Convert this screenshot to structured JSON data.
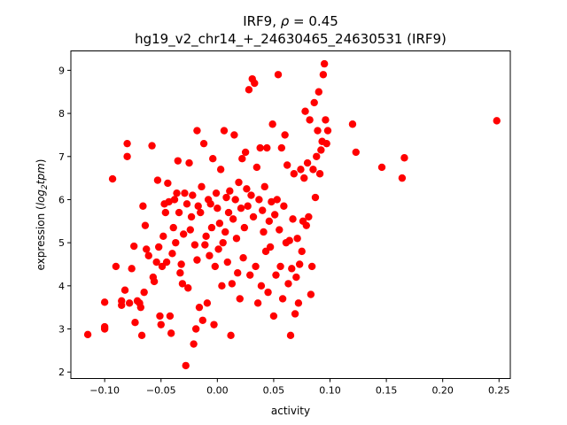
{
  "chart_data": {
    "type": "scatter",
    "title": {
      "line1_prefix": "IRF9, ",
      "line1_rho_symbol": "ρ",
      "line1_rho_value": " = 0.45",
      "line2": "hg19_v2_chr14_+_24630465_24630531 (IRF9)"
    },
    "xlabel": "activity",
    "ylabel": {
      "prefix": "expression (",
      "log_base": "log",
      "subscript": "2",
      "suffix_italic": "tpm",
      "close": ")"
    },
    "xlim": [
      -0.13,
      0.26
    ],
    "ylim": [
      1.85,
      9.45
    ],
    "xticks": [
      -0.1,
      -0.05,
      0.0,
      0.05,
      0.1,
      0.15,
      0.2,
      0.25
    ],
    "xtick_labels": [
      "−0.10",
      "−0.05",
      "0.00",
      "0.05",
      "0.10",
      "0.15",
      "0.20",
      "0.25"
    ],
    "yticks": [
      2,
      3,
      4,
      5,
      6,
      7,
      8,
      9
    ],
    "ytick_labels": [
      "2",
      "3",
      "4",
      "5",
      "6",
      "7",
      "8",
      "9"
    ],
    "marker_color": "#ff0000",
    "grid": false,
    "points": [
      [
        -0.115,
        2.87
      ],
      [
        -0.1,
        3.0
      ],
      [
        -0.1,
        3.05
      ],
      [
        -0.1,
        3.62
      ],
      [
        -0.093,
        6.48
      ],
      [
        -0.09,
        4.45
      ],
      [
        -0.085,
        3.55
      ],
      [
        -0.085,
        3.65
      ],
      [
        -0.082,
        3.9
      ],
      [
        -0.08,
        7.3
      ],
      [
        -0.08,
        7.0
      ],
      [
        -0.078,
        3.6
      ],
      [
        -0.076,
        4.4
      ],
      [
        -0.074,
        4.92
      ],
      [
        -0.073,
        3.15
      ],
      [
        -0.071,
        3.65
      ],
      [
        -0.069,
        3.6
      ],
      [
        -0.068,
        3.5
      ],
      [
        -0.067,
        2.85
      ],
      [
        -0.066,
        5.85
      ],
      [
        -0.065,
        3.85
      ],
      [
        -0.064,
        5.4
      ],
      [
        -0.063,
        4.85
      ],
      [
        -0.061,
        4.7
      ],
      [
        -0.058,
        7.25
      ],
      [
        -0.057,
        4.2
      ],
      [
        -0.056,
        4.1
      ],
      [
        -0.054,
        4.55
      ],
      [
        -0.053,
        6.45
      ],
      [
        -0.052,
        4.9
      ],
      [
        -0.051,
        3.3
      ],
      [
        -0.05,
        3.1
      ],
      [
        -0.049,
        4.45
      ],
      [
        -0.048,
        5.15
      ],
      [
        -0.047,
        5.9
      ],
      [
        -0.046,
        5.7
      ],
      [
        -0.045,
        4.55
      ],
      [
        -0.044,
        6.38
      ],
      [
        -0.043,
        5.95
      ],
      [
        -0.042,
        3.3
      ],
      [
        -0.041,
        2.9
      ],
      [
        -0.04,
        4.75
      ],
      [
        -0.039,
        5.35
      ],
      [
        -0.038,
        6.0
      ],
      [
        -0.037,
        5.0
      ],
      [
        -0.036,
        6.15
      ],
      [
        -0.035,
        6.9
      ],
      [
        -0.034,
        5.7
      ],
      [
        -0.033,
        4.3
      ],
      [
        -0.032,
        4.5
      ],
      [
        -0.031,
        4.05
      ],
      [
        -0.03,
        5.2
      ],
      [
        -0.029,
        6.15
      ],
      [
        -0.028,
        2.15
      ],
      [
        -0.027,
        5.9
      ],
      [
        -0.026,
        3.95
      ],
      [
        -0.025,
        6.85
      ],
      [
        -0.024,
        5.3
      ],
      [
        -0.023,
        5.6
      ],
      [
        -0.022,
        6.1
      ],
      [
        -0.021,
        2.65
      ],
      [
        -0.02,
        4.95
      ],
      [
        -0.019,
        3.0
      ],
      [
        -0.018,
        7.6
      ],
      [
        -0.018,
        4.6
      ],
      [
        -0.017,
        5.85
      ],
      [
        -0.016,
        3.5
      ],
      [
        -0.015,
        5.7
      ],
      [
        -0.014,
        6.3
      ],
      [
        -0.013,
        3.2
      ],
      [
        -0.012,
        7.3
      ],
      [
        -0.011,
        4.95
      ],
      [
        -0.01,
        5.15
      ],
      [
        -0.009,
        3.6
      ],
      [
        -0.008,
        6.0
      ],
      [
        -0.007,
        4.7
      ],
      [
        -0.006,
        5.9
      ],
      [
        -0.005,
        5.35
      ],
      [
        -0.004,
        6.95
      ],
      [
        -0.003,
        3.1
      ],
      [
        -0.002,
        4.45
      ],
      [
        -0.001,
        6.15
      ],
      [
        0.0,
        5.8
      ],
      [
        0.001,
        4.85
      ],
      [
        0.002,
        5.45
      ],
      [
        0.003,
        6.7
      ],
      [
        0.004,
        4.0
      ],
      [
        0.005,
        5.0
      ],
      [
        0.006,
        7.6
      ],
      [
        0.007,
        5.25
      ],
      [
        0.008,
        6.05
      ],
      [
        0.009,
        4.55
      ],
      [
        0.01,
        5.7
      ],
      [
        0.011,
        6.2
      ],
      [
        0.012,
        2.85
      ],
      [
        0.013,
        4.05
      ],
      [
        0.014,
        5.55
      ],
      [
        0.015,
        7.5
      ],
      [
        0.016,
        6.0
      ],
      [
        0.017,
        5.1
      ],
      [
        0.018,
        4.3
      ],
      [
        0.019,
        6.4
      ],
      [
        0.02,
        3.7
      ],
      [
        0.021,
        5.8
      ],
      [
        0.022,
        6.95
      ],
      [
        0.023,
        4.65
      ],
      [
        0.024,
        5.35
      ],
      [
        0.025,
        7.1
      ],
      [
        0.026,
        6.25
      ],
      [
        0.027,
        5.85
      ],
      [
        0.028,
        8.55
      ],
      [
        0.029,
        4.25
      ],
      [
        0.03,
        6.1
      ],
      [
        0.031,
        8.8
      ],
      [
        0.032,
        5.6
      ],
      [
        0.033,
        8.7
      ],
      [
        0.034,
        4.45
      ],
      [
        0.035,
        6.75
      ],
      [
        0.036,
        3.6
      ],
      [
        0.037,
        6.0
      ],
      [
        0.038,
        7.2
      ],
      [
        0.039,
        4.0
      ],
      [
        0.04,
        5.75
      ],
      [
        0.041,
        5.25
      ],
      [
        0.042,
        6.3
      ],
      [
        0.043,
        4.8
      ],
      [
        0.044,
        7.2
      ],
      [
        0.045,
        3.85
      ],
      [
        0.046,
        5.5
      ],
      [
        0.047,
        4.9
      ],
      [
        0.048,
        5.95
      ],
      [
        0.049,
        7.75
      ],
      [
        0.05,
        3.3
      ],
      [
        0.051,
        5.65
      ],
      [
        0.052,
        4.25
      ],
      [
        0.053,
        6.0
      ],
      [
        0.054,
        8.9
      ],
      [
        0.055,
        5.3
      ],
      [
        0.056,
        4.45
      ],
      [
        0.057,
        7.2
      ],
      [
        0.058,
        3.7
      ],
      [
        0.059,
        5.85
      ],
      [
        0.06,
        7.5
      ],
      [
        0.061,
        5.0
      ],
      [
        0.062,
        6.8
      ],
      [
        0.063,
        4.05
      ],
      [
        0.064,
        5.05
      ],
      [
        0.065,
        2.85
      ],
      [
        0.066,
        4.4
      ],
      [
        0.067,
        5.55
      ],
      [
        0.068,
        6.6
      ],
      [
        0.069,
        3.35
      ],
      [
        0.07,
        4.2
      ],
      [
        0.071,
        5.1
      ],
      [
        0.072,
        3.6
      ],
      [
        0.073,
        4.5
      ],
      [
        0.074,
        6.7
      ],
      [
        0.075,
        4.8
      ],
      [
        0.076,
        5.5
      ],
      [
        0.077,
        6.5
      ],
      [
        0.078,
        8.05
      ],
      [
        0.079,
        5.4
      ],
      [
        0.08,
        6.85
      ],
      [
        0.081,
        5.6
      ],
      [
        0.082,
        7.85
      ],
      [
        0.083,
        3.8
      ],
      [
        0.084,
        4.45
      ],
      [
        0.085,
        6.7
      ],
      [
        0.086,
        8.25
      ],
      [
        0.087,
        6.05
      ],
      [
        0.088,
        7.0
      ],
      [
        0.089,
        7.6
      ],
      [
        0.09,
        8.5
      ],
      [
        0.091,
        6.6
      ],
      [
        0.092,
        7.15
      ],
      [
        0.093,
        7.35
      ],
      [
        0.094,
        8.9
      ],
      [
        0.095,
        9.15
      ],
      [
        0.096,
        7.85
      ],
      [
        0.097,
        7.3
      ],
      [
        0.098,
        7.6
      ],
      [
        0.12,
        7.75
      ],
      [
        0.123,
        7.1
      ],
      [
        0.146,
        6.75
      ],
      [
        0.164,
        6.5
      ],
      [
        0.166,
        6.97
      ],
      [
        0.248,
        7.83
      ]
    ]
  }
}
